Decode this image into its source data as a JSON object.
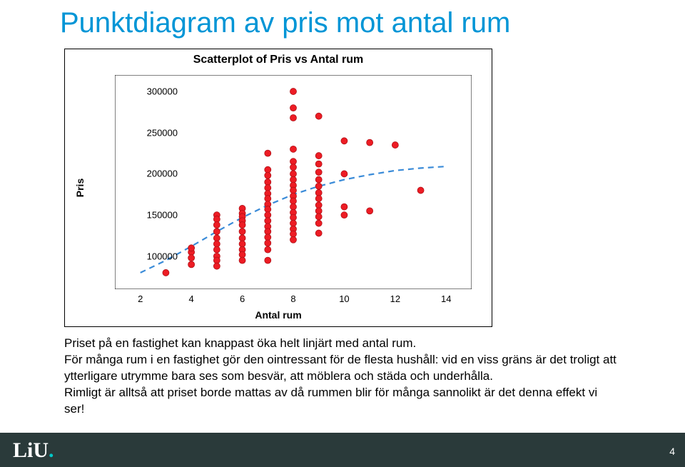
{
  "title": "Punktdiagram av pris mot antal rum",
  "chart": {
    "type": "scatter",
    "title": "Scatterplot of Pris vs Antal rum",
    "xlabel": "Antal rum",
    "ylabel": "Pris",
    "title_fontsize": 16,
    "label_fontsize": 14,
    "tick_fontsize": 13,
    "xlim": [
      1,
      15
    ],
    "ylim": [
      60000,
      320000
    ],
    "xticks": [
      2,
      4,
      6,
      8,
      10,
      12,
      14
    ],
    "yticks": [
      100000,
      150000,
      200000,
      250000,
      300000
    ],
    "frame_color": "#000000",
    "background_color": "#ffffff",
    "tick_len": 6,
    "marker": {
      "shape": "circle",
      "radius": 4.5,
      "fill": "#ed1c24",
      "stroke": "#b01017",
      "stroke_width": 0.8
    },
    "trend": {
      "color": "#3a8bd8",
      "width": 2.2,
      "dash": "8,6",
      "pts": [
        [
          2,
          80000
        ],
        [
          3,
          95000
        ],
        [
          4,
          112000
        ],
        [
          5,
          130000
        ],
        [
          6,
          147000
        ],
        [
          7,
          162000
        ],
        [
          8,
          175000
        ],
        [
          9,
          185000
        ],
        [
          10,
          193000
        ],
        [
          11,
          199000
        ],
        [
          12,
          204000
        ],
        [
          13,
          207000
        ],
        [
          14,
          209000
        ]
      ]
    },
    "points": [
      [
        3,
        80000
      ],
      [
        4,
        105000
      ],
      [
        4,
        110000
      ],
      [
        4,
        98000
      ],
      [
        4,
        90000
      ],
      [
        5,
        150000
      ],
      [
        5,
        145000
      ],
      [
        5,
        138000
      ],
      [
        5,
        130000
      ],
      [
        5,
        122000
      ],
      [
        5,
        115000
      ],
      [
        5,
        108000
      ],
      [
        5,
        100000
      ],
      [
        5,
        95000
      ],
      [
        5,
        88000
      ],
      [
        6,
        158000
      ],
      [
        6,
        152000
      ],
      [
        6,
        148000
      ],
      [
        6,
        143000
      ],
      [
        6,
        138000
      ],
      [
        6,
        130000
      ],
      [
        6,
        122000
      ],
      [
        6,
        115000
      ],
      [
        6,
        108000
      ],
      [
        6,
        102000
      ],
      [
        6,
        95000
      ],
      [
        7,
        225000
      ],
      [
        7,
        205000
      ],
      [
        7,
        198000
      ],
      [
        7,
        190000
      ],
      [
        7,
        183000
      ],
      [
        7,
        176000
      ],
      [
        7,
        170000
      ],
      [
        7,
        163000
      ],
      [
        7,
        157000
      ],
      [
        7,
        150000
      ],
      [
        7,
        143000
      ],
      [
        7,
        136000
      ],
      [
        7,
        130000
      ],
      [
        7,
        123000
      ],
      [
        7,
        116000
      ],
      [
        7,
        108000
      ],
      [
        7,
        95000
      ],
      [
        8,
        300000
      ],
      [
        8,
        280000
      ],
      [
        8,
        268000
      ],
      [
        8,
        230000
      ],
      [
        8,
        215000
      ],
      [
        8,
        208000
      ],
      [
        8,
        200000
      ],
      [
        8,
        193000
      ],
      [
        8,
        186000
      ],
      [
        8,
        180000
      ],
      [
        8,
        173000
      ],
      [
        8,
        167000
      ],
      [
        8,
        160000
      ],
      [
        8,
        153000
      ],
      [
        8,
        147000
      ],
      [
        8,
        140000
      ],
      [
        8,
        133000
      ],
      [
        8,
        127000
      ],
      [
        8,
        120000
      ],
      [
        9,
        270000
      ],
      [
        9,
        222000
      ],
      [
        9,
        212000
      ],
      [
        9,
        202000
      ],
      [
        9,
        193000
      ],
      [
        9,
        185000
      ],
      [
        9,
        177000
      ],
      [
        9,
        170000
      ],
      [
        9,
        162000
      ],
      [
        9,
        155000
      ],
      [
        9,
        148000
      ],
      [
        9,
        140000
      ],
      [
        9,
        128000
      ],
      [
        10,
        240000
      ],
      [
        10,
        200000
      ],
      [
        10,
        160000
      ],
      [
        10,
        150000
      ],
      [
        11,
        238000
      ],
      [
        11,
        155000
      ],
      [
        12,
        235000
      ],
      [
        13,
        180000
      ]
    ]
  },
  "body": {
    "p1": "Priset på en fastighet kan knappast öka helt linjärt med antal rum.",
    "p2": "För många rum i en fastighet gör den ointressant för de flesta hushåll: vid en viss gräns är det troligt att ytterligare utrymme bara ses som besvär, att möblera och städa och underhålla.",
    "p3": "Rimligt är alltså att priset borde mattas av då rummen blir för många sannolikt är det denna effekt vi ser!"
  },
  "footer": {
    "logo_main": "LiU",
    "page": "4"
  }
}
